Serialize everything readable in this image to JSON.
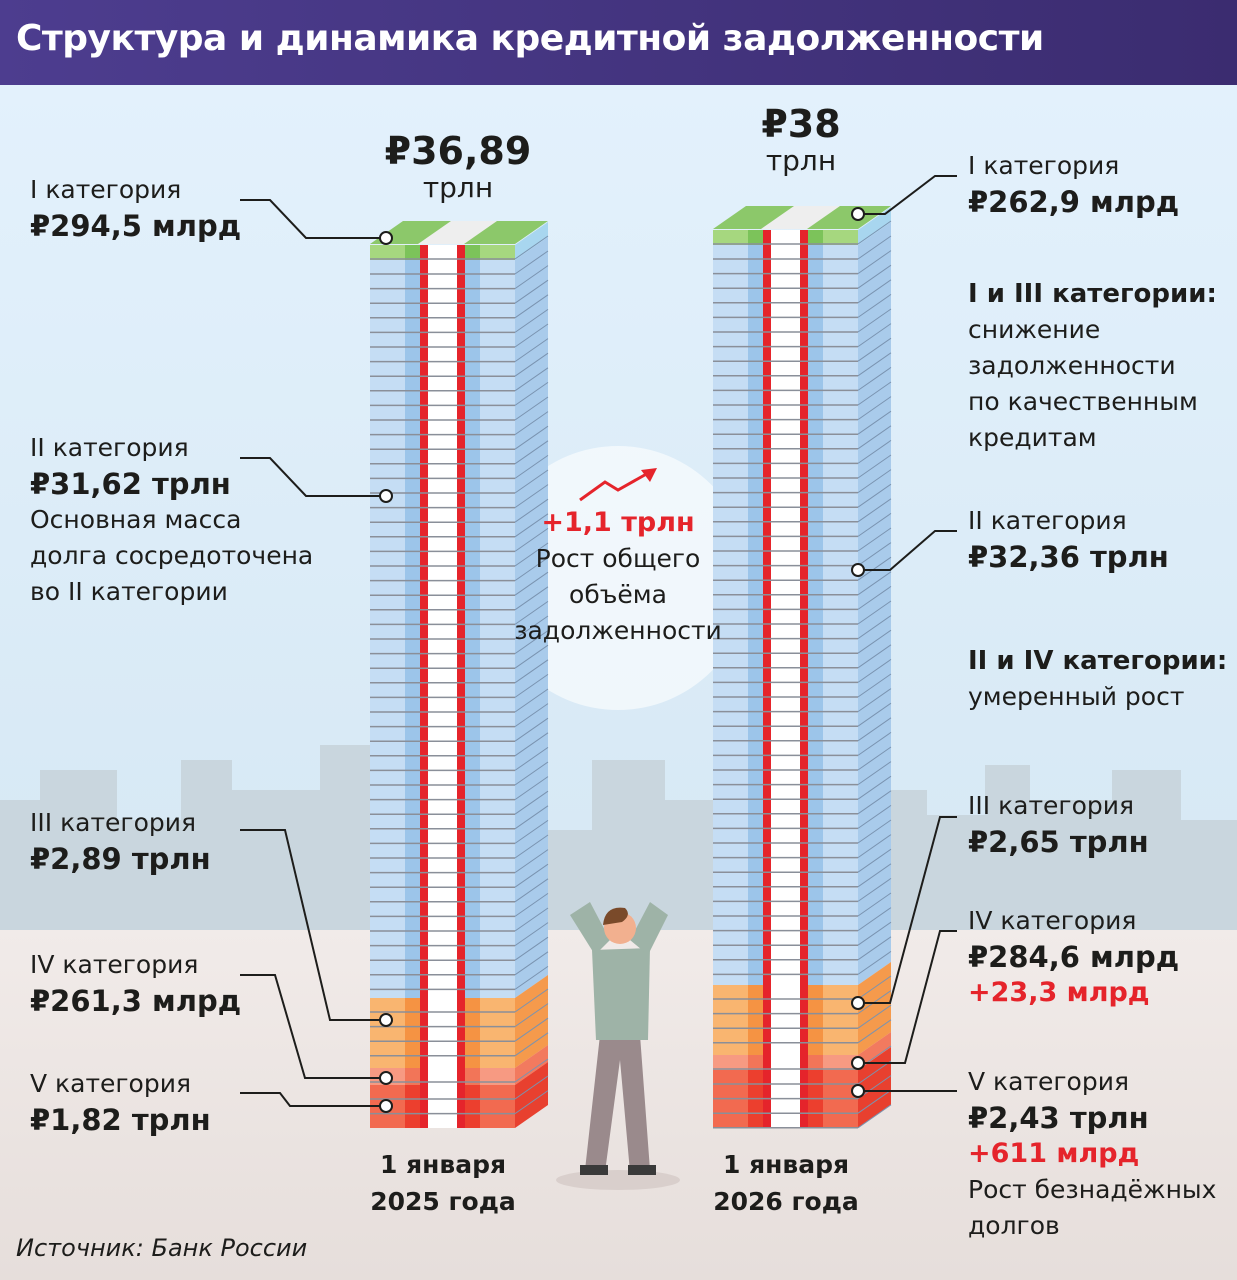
{
  "title": "Структура и динамика кредитной задолженности",
  "source": "Источник: Банк России",
  "colors": {
    "header": "#4a3a8a",
    "category_I": "#8cc86a",
    "category_II": "#b8d6f2",
    "category_III": "#f7a65a",
    "category_IV": "#f48a6e",
    "category_V": "#ee4a37",
    "band": "#e5242b",
    "growth": "#e5242b"
  },
  "center_note": {
    "value": "+1,1 трлн",
    "text_lines": [
      "Рост общего",
      "объёма",
      "задолженности"
    ],
    "icon": "trend-up-arrow-icon"
  },
  "left": {
    "total_value": "₽36,89",
    "total_unit": "трлн",
    "date_lines": [
      "1 января",
      "2025 года"
    ],
    "labels": [
      {
        "name": "I категория",
        "value": "₽294,5 млрд"
      },
      {
        "name": "II категория",
        "value": "₽31,62 трлн",
        "note_lines": [
          "Основная масса",
          "долга сосредоточена",
          "во II категории"
        ]
      },
      {
        "name": "III категория",
        "value": "₽2,89 трлн"
      },
      {
        "name": "IV категория",
        "value": "₽261,3 млрд"
      },
      {
        "name": "V категория",
        "value": "₽1,82 трлн"
      }
    ]
  },
  "right": {
    "total_value": "₽38",
    "total_unit": "трлн",
    "date_lines": [
      "1 января",
      "2026 года"
    ],
    "labels": [
      {
        "name": "I категория",
        "value": "₽262,9 млрд"
      },
      {
        "name": "II категория",
        "value": "₽32,36 трлн"
      },
      {
        "name": "III категория",
        "value": "₽2,65 трлн"
      },
      {
        "name": "IV категория",
        "value": "₽284,6 млрд",
        "change": "+23,3 млрд"
      },
      {
        "name": "V категория",
        "value": "₽2,43 трлн",
        "change": "+611 млрд",
        "note_lines": [
          "Рост безнадёжных",
          "долгов"
        ]
      }
    ],
    "notes": [
      {
        "heading": "I и III категории:",
        "lines": [
          "снижение",
          "задолженности",
          "по качественным",
          "кредитам"
        ]
      },
      {
        "heading": "II и IV категории:",
        "lines": [
          "умеренный рост"
        ]
      }
    ]
  },
  "chart_data": {
    "type": "bar",
    "stacked": true,
    "title": "Структура и динамика кредитной задолженности",
    "categories": [
      "1 января 2025 года",
      "1 января 2026 года"
    ],
    "unit": "трлн ₽",
    "totals": [
      36.89,
      38
    ],
    "series": [
      {
        "name": "I категория",
        "values": [
          0.2945,
          0.2629
        ]
      },
      {
        "name": "II категория",
        "values": [
          31.62,
          32.36
        ]
      },
      {
        "name": "III категория",
        "values": [
          2.89,
          2.65
        ]
      },
      {
        "name": "IV категория",
        "values": [
          0.2613,
          0.2846
        ]
      },
      {
        "name": "V категория",
        "values": [
          1.82,
          2.43
        ]
      }
    ]
  }
}
